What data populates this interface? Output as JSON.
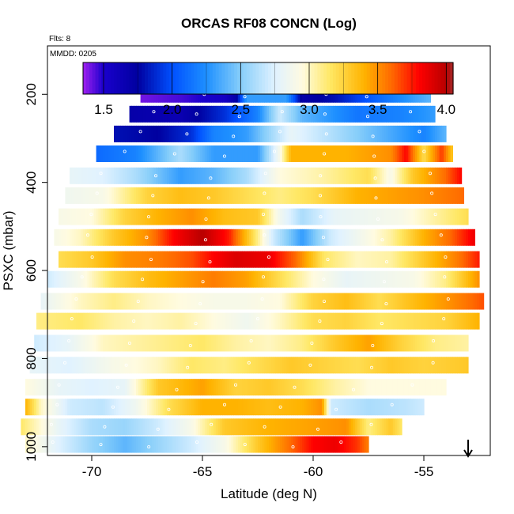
{
  "chart_data": {
    "type": "heatmap",
    "title": "ORCAS RF08 CONCN (Log)",
    "flights_note": "Flts: 8",
    "date_note": "MMDD: 0205",
    "xlabel": "Latitude (deg N)",
    "ylabel": "PSXC (mbar)",
    "xlim": [
      -72,
      -52
    ],
    "ylim": [
      1020,
      90
    ],
    "x_ticks": [
      -70,
      -65,
      -60,
      -55
    ],
    "x_tick_labels": [
      "-70",
      "-65",
      "-60",
      "-55"
    ],
    "y_ticks": [
      200,
      400,
      600,
      800,
      1000
    ],
    "y_tick_labels": [
      "200",
      "400",
      "600",
      "800",
      "1000"
    ],
    "colorbar": {
      "range": [
        1.35,
        4.05
      ],
      "ticks": [
        1.5,
        2.0,
        2.5,
        3.0,
        3.5,
        4.0
      ],
      "tick_labels": [
        "1.5",
        "2.0",
        "2.5",
        "3.0",
        "3.5",
        "4.0"
      ],
      "stops": [
        {
          "v": 1.35,
          "c": "#a020f0"
        },
        {
          "v": 1.5,
          "c": "#1a00cc"
        },
        {
          "v": 1.75,
          "c": "#0000a0"
        },
        {
          "v": 2.0,
          "c": "#0050ff"
        },
        {
          "v": 2.25,
          "c": "#1e90ff"
        },
        {
          "v": 2.5,
          "c": "#87cefa"
        },
        {
          "v": 2.75,
          "c": "#e0f2ff"
        },
        {
          "v": 2.95,
          "c": "#fffbe0"
        },
        {
          "v": 3.15,
          "c": "#ffe866"
        },
        {
          "v": 3.4,
          "c": "#ffb300"
        },
        {
          "v": 3.6,
          "c": "#ff6a00"
        },
        {
          "v": 3.8,
          "c": "#ff0000"
        },
        {
          "v": 4.0,
          "c": "#b80000"
        },
        {
          "v": 4.05,
          "c": "#a52a2a"
        }
      ]
    },
    "arrow_latitude": -53,
    "rows": [
      {
        "p": 200,
        "lat_min": -67.8,
        "lat_max": -54.7,
        "pts": [
          [
            -67.8,
            1.4
          ],
          [
            -66,
            1.45
          ],
          [
            -64,
            1.55
          ],
          [
            -63.5,
            1.7
          ],
          [
            -63,
            2.3
          ],
          [
            -61.2,
            2.3
          ],
          [
            -60.5,
            1.7
          ],
          [
            -59,
            1.8
          ],
          [
            -57,
            2.1
          ],
          [
            -55.5,
            2.3
          ],
          [
            -54.7,
            2.4
          ]
        ]
      },
      {
        "p": 245,
        "lat_min": -68.3,
        "lat_max": -54.5,
        "pts": [
          [
            -68.3,
            1.7
          ],
          [
            -66,
            1.65
          ],
          [
            -64,
            1.9
          ],
          [
            -62.5,
            2.2
          ],
          [
            -61.5,
            2.7
          ],
          [
            -60.5,
            2.4
          ],
          [
            -58,
            2.15
          ],
          [
            -56,
            2.2
          ],
          [
            -54.5,
            2.3
          ]
        ]
      },
      {
        "p": 290,
        "lat_min": -69.0,
        "lat_max": -54.0,
        "pts": [
          [
            -69,
            1.8
          ],
          [
            -67,
            1.75
          ],
          [
            -65.5,
            1.9
          ],
          [
            -64.5,
            2.2
          ],
          [
            -63,
            2.3
          ],
          [
            -61.8,
            2.6
          ],
          [
            -61,
            2.8
          ],
          [
            -59,
            2.6
          ],
          [
            -57,
            2.4
          ],
          [
            -55,
            2.2
          ],
          [
            -54,
            2.4
          ]
        ]
      },
      {
        "p": 335,
        "lat_min": -69.8,
        "lat_max": -53.7,
        "pts": [
          [
            -69.8,
            2.1
          ],
          [
            -68,
            2.2
          ],
          [
            -66,
            2.6
          ],
          [
            -64.5,
            2.3
          ],
          [
            -62.5,
            2.3
          ],
          [
            -61.5,
            2.9
          ],
          [
            -61,
            3.4
          ],
          [
            -58.5,
            3.4
          ],
          [
            -56.5,
            3.5
          ],
          [
            -55.8,
            3.8
          ],
          [
            -55,
            3.2
          ],
          [
            -54.2,
            3.7
          ],
          [
            -53.7,
            3.3
          ]
        ]
      },
      {
        "p": 385,
        "lat_min": -71.0,
        "lat_max": -53.3,
        "pts": [
          [
            -71,
            2.8
          ],
          [
            -69.5,
            2.75
          ],
          [
            -68,
            2.6
          ],
          [
            -66,
            2.3
          ],
          [
            -64.5,
            2.4
          ],
          [
            -63,
            2.6
          ],
          [
            -61.5,
            2.95
          ],
          [
            -59.5,
            3.05
          ],
          [
            -57.5,
            3.2
          ],
          [
            -56.5,
            2.9
          ],
          [
            -55.5,
            3.3
          ],
          [
            -54,
            3.6
          ],
          [
            -53.3,
            3.8
          ]
        ]
      },
      {
        "p": 430,
        "lat_min": -71.2,
        "lat_max": -53.2,
        "pts": [
          [
            -71.2,
            2.85
          ],
          [
            -69.5,
            2.9
          ],
          [
            -67.5,
            3.25
          ],
          [
            -66,
            3.35
          ],
          [
            -64.5,
            3.3
          ],
          [
            -63,
            3.2
          ],
          [
            -61.5,
            3.1
          ],
          [
            -60,
            3.2
          ],
          [
            -58,
            3.4
          ],
          [
            -56.5,
            3.45
          ],
          [
            -55,
            3.5
          ],
          [
            -53.2,
            3.6
          ]
        ]
      },
      {
        "p": 478,
        "lat_min": -71.5,
        "lat_max": -53.0,
        "pts": [
          [
            -71.5,
            2.9
          ],
          [
            -70,
            2.95
          ],
          [
            -68.5,
            3.25
          ],
          [
            -67,
            3.4
          ],
          [
            -65.5,
            3.5
          ],
          [
            -64,
            3.35
          ],
          [
            -62.5,
            3.3
          ],
          [
            -61.5,
            2.85
          ],
          [
            -60.5,
            2.6
          ],
          [
            -59,
            2.8
          ],
          [
            -57.5,
            2.85
          ],
          [
            -56,
            2.9
          ],
          [
            -54.5,
            3.05
          ],
          [
            -53,
            3.2
          ]
        ]
      },
      {
        "p": 525,
        "lat_min": -71.7,
        "lat_max": -52.7,
        "pts": [
          [
            -71.7,
            2.9
          ],
          [
            -70.5,
            3.0
          ],
          [
            -69,
            3.3
          ],
          [
            -67.5,
            3.5
          ],
          [
            -66.3,
            3.8
          ],
          [
            -65,
            4.0
          ],
          [
            -63.8,
            3.75
          ],
          [
            -62.8,
            3.25
          ],
          [
            -61.8,
            2.7
          ],
          [
            -60.5,
            2.3
          ],
          [
            -59.2,
            2.7
          ],
          [
            -58,
            2.85
          ],
          [
            -56.5,
            3.05
          ],
          [
            -55,
            3.4
          ],
          [
            -53.8,
            3.6
          ],
          [
            -52.7,
            3.85
          ]
        ]
      },
      {
        "p": 575,
        "lat_min": -71.5,
        "lat_max": -52.5,
        "pts": [
          [
            -71.5,
            3.2
          ],
          [
            -70,
            3.3
          ],
          [
            -68.5,
            3.5
          ],
          [
            -67,
            3.55
          ],
          [
            -65.5,
            3.65
          ],
          [
            -64.5,
            3.8
          ],
          [
            -63.5,
            3.9
          ],
          [
            -62,
            3.85
          ],
          [
            -60.8,
            3.6
          ],
          [
            -59.5,
            3.15
          ],
          [
            -58,
            3.0
          ],
          [
            -56.5,
            3.05
          ],
          [
            -55,
            3.3
          ],
          [
            -53.5,
            3.55
          ],
          [
            -52.5,
            3.75
          ]
        ]
      },
      {
        "p": 620,
        "lat_min": -72.0,
        "lat_max": -52.5,
        "pts": [
          [
            -72,
            2.7
          ],
          [
            -70.5,
            2.9
          ],
          [
            -69,
            3.2
          ],
          [
            -67.5,
            3.35
          ],
          [
            -66,
            3.45
          ],
          [
            -64.5,
            3.55
          ],
          [
            -63,
            3.45
          ],
          [
            -61.5,
            3.2
          ],
          [
            -60,
            2.95
          ],
          [
            -58.5,
            2.8
          ],
          [
            -57,
            2.85
          ],
          [
            -55.5,
            2.9
          ],
          [
            -54,
            3.1
          ],
          [
            -52.5,
            3.5
          ]
        ]
      },
      {
        "p": 670,
        "lat_min": -72.3,
        "lat_max": -52.3,
        "pts": [
          [
            -72.3,
            2.8
          ],
          [
            -70.5,
            3.0
          ],
          [
            -69,
            3.1
          ],
          [
            -67.5,
            3.0
          ],
          [
            -66,
            2.95
          ],
          [
            -64.5,
            2.9
          ],
          [
            -63,
            2.9
          ],
          [
            -61.5,
            2.95
          ],
          [
            -60,
            3.25
          ],
          [
            -58.5,
            3.35
          ],
          [
            -57,
            3.2
          ],
          [
            -55.5,
            3.35
          ],
          [
            -53.8,
            3.5
          ],
          [
            -52.3,
            3.65
          ]
        ]
      },
      {
        "p": 715,
        "lat_min": -72.5,
        "lat_max": -52.5,
        "pts": [
          [
            -72.5,
            3.1
          ],
          [
            -70.5,
            3.15
          ],
          [
            -69,
            3.05
          ],
          [
            -67.5,
            3.0
          ],
          [
            -66,
            3.05
          ],
          [
            -64.5,
            2.95
          ],
          [
            -63,
            2.85
          ],
          [
            -61.5,
            3.0
          ],
          [
            -60,
            3.2
          ],
          [
            -58.5,
            3.25
          ],
          [
            -57,
            3.15
          ],
          [
            -55.5,
            3.2
          ],
          [
            -54,
            3.25
          ],
          [
            -52.5,
            3.4
          ]
        ]
      },
      {
        "p": 765,
        "lat_min": -72.6,
        "lat_max": -53.0,
        "pts": [
          [
            -72.6,
            2.7
          ],
          [
            -71,
            2.8
          ],
          [
            -69.5,
            3.0
          ],
          [
            -68,
            3.05
          ],
          [
            -66.5,
            3.1
          ],
          [
            -65,
            3.15
          ],
          [
            -63.5,
            3.05
          ],
          [
            -62,
            3.0
          ],
          [
            -60.5,
            3.1
          ],
          [
            -59,
            3.3
          ],
          [
            -57.5,
            3.45
          ],
          [
            -56,
            3.25
          ],
          [
            -54.5,
            3.1
          ],
          [
            -53,
            3.05
          ]
        ]
      },
      {
        "p": 815,
        "lat_min": -72.8,
        "lat_max": -53.0,
        "pts": [
          [
            -72.8,
            2.8
          ],
          [
            -71,
            2.75
          ],
          [
            -69,
            2.9
          ],
          [
            -67,
            3.0
          ],
          [
            -65.5,
            3.15
          ],
          [
            -64,
            3.1
          ],
          [
            -62.5,
            3.2
          ],
          [
            -61,
            3.3
          ],
          [
            -59.5,
            3.25
          ],
          [
            -58,
            3.2
          ],
          [
            -56.5,
            3.3
          ],
          [
            -55,
            3.25
          ],
          [
            -53,
            3.3
          ]
        ]
      },
      {
        "p": 865,
        "lat_min": -73.0,
        "lat_max": -54.0,
        "pts": [
          [
            -73,
            2.95
          ],
          [
            -71.5,
            2.8
          ],
          [
            -70,
            2.75
          ],
          [
            -68.5,
            2.8
          ],
          [
            -67,
            3.3
          ],
          [
            -65,
            3.45
          ],
          [
            -63.5,
            3.25
          ],
          [
            -62,
            3.3
          ],
          [
            -60.5,
            3.2
          ],
          [
            -59,
            3.05
          ],
          [
            -57.5,
            2.95
          ],
          [
            -56,
            2.95
          ],
          [
            -54,
            2.95
          ]
        ]
      },
      {
        "p": 910,
        "lat_min": -73.0,
        "lat_max": -55.0,
        "pts": [
          [
            -73,
            3.4
          ],
          [
            -72.3,
            3.0
          ],
          [
            -71,
            2.7
          ],
          [
            -69.5,
            2.65
          ],
          [
            -68,
            2.85
          ],
          [
            -66.5,
            3.2
          ],
          [
            -65,
            3.4
          ],
          [
            -63.5,
            3.4
          ],
          [
            -62,
            3.35
          ],
          [
            -60.5,
            3.4
          ],
          [
            -59.6,
            3.5
          ],
          [
            -59.2,
            2.7
          ],
          [
            -57.5,
            2.6
          ],
          [
            -55.8,
            2.65
          ],
          [
            -55,
            2.7
          ]
        ]
      },
      {
        "p": 955,
        "lat_min": -73.2,
        "lat_max": -56.0,
        "pts": [
          [
            -73.2,
            3.15
          ],
          [
            -71.5,
            2.8
          ],
          [
            -70,
            2.6
          ],
          [
            -68.5,
            2.55
          ],
          [
            -67,
            2.7
          ],
          [
            -65.5,
            2.9
          ],
          [
            -64,
            3.3
          ],
          [
            -62,
            3.4
          ],
          [
            -60,
            3.45
          ],
          [
            -58.5,
            3.5
          ],
          [
            -57.5,
            3.1
          ],
          [
            -56.5,
            3.3
          ],
          [
            -56,
            3.15
          ]
        ]
      },
      {
        "p": 995,
        "lat_min": -73.0,
        "lat_max": -57.5,
        "pts": [
          [
            -73,
            3.0
          ],
          [
            -71.5,
            2.75
          ],
          [
            -70,
            2.55
          ],
          [
            -68.5,
            2.4
          ],
          [
            -67,
            2.55
          ],
          [
            -65.5,
            2.7
          ],
          [
            -64,
            2.9
          ],
          [
            -62.5,
            3.3
          ],
          [
            -61,
            3.6
          ],
          [
            -60,
            3.8
          ],
          [
            -59,
            3.85
          ],
          [
            -58,
            3.7
          ],
          [
            -57.5,
            3.55
          ]
        ]
      }
    ]
  }
}
